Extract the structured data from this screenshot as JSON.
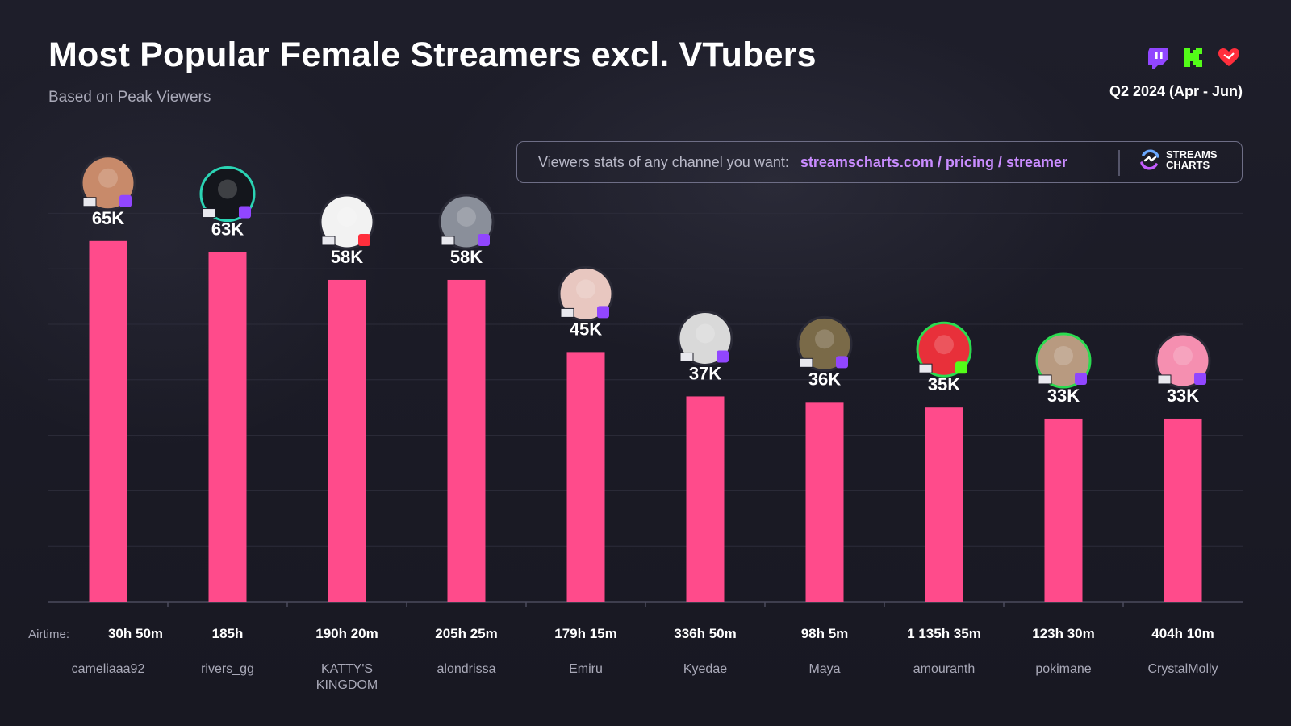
{
  "header": {
    "title": "Most Popular Female Streamers excl. VTubers",
    "subtitle": "Based on Peak Viewers",
    "period": "Q2 2024 (Apr - Jun)",
    "platform_icons": [
      "twitch-icon",
      "kick-icon",
      "youtube-icon"
    ]
  },
  "promo": {
    "text": "Viewers stats of any channel you want:",
    "link": "streamscharts.com / pricing / streamer",
    "brand": "STREAMS CHARTS"
  },
  "colors": {
    "bar": "#ff4b8b",
    "twitch": "#9146ff",
    "kick": "#53fc18",
    "youtube": "#ff2e3c"
  },
  "chart_data": {
    "type": "bar",
    "title": "Most Popular Female Streamers excl. VTubers",
    "subtitle": "Based on Peak Viewers",
    "ylim": [
      0,
      75
    ],
    "grid": true,
    "airtime_label": "Airtime:",
    "categories": [
      "cameliaaa92",
      "rivers_gg",
      "KATTY'S KINGDOM",
      "alondrissa",
      "Emiru",
      "Kyedae",
      "Maya",
      "amouranth",
      "pokimane",
      "CrystalMolly"
    ],
    "values": [
      65,
      63,
      58,
      58,
      45,
      37,
      36,
      35,
      33,
      33
    ],
    "value_labels": [
      "65K",
      "63K",
      "58K",
      "58K",
      "45K",
      "37K",
      "36K",
      "35K",
      "33K",
      "33K"
    ],
    "airtime": [
      "30h 50m",
      "185h",
      "190h 20m",
      "205h 25m",
      "179h 15m",
      "336h 50m",
      "98h 5m",
      "1 135h 35m",
      "123h 30m",
      "404h 10m"
    ],
    "platforms": [
      "twitch",
      "twitch",
      "youtube",
      "twitch",
      "twitch",
      "twitch",
      "twitch",
      "kick",
      "twitch",
      "twitch"
    ]
  }
}
